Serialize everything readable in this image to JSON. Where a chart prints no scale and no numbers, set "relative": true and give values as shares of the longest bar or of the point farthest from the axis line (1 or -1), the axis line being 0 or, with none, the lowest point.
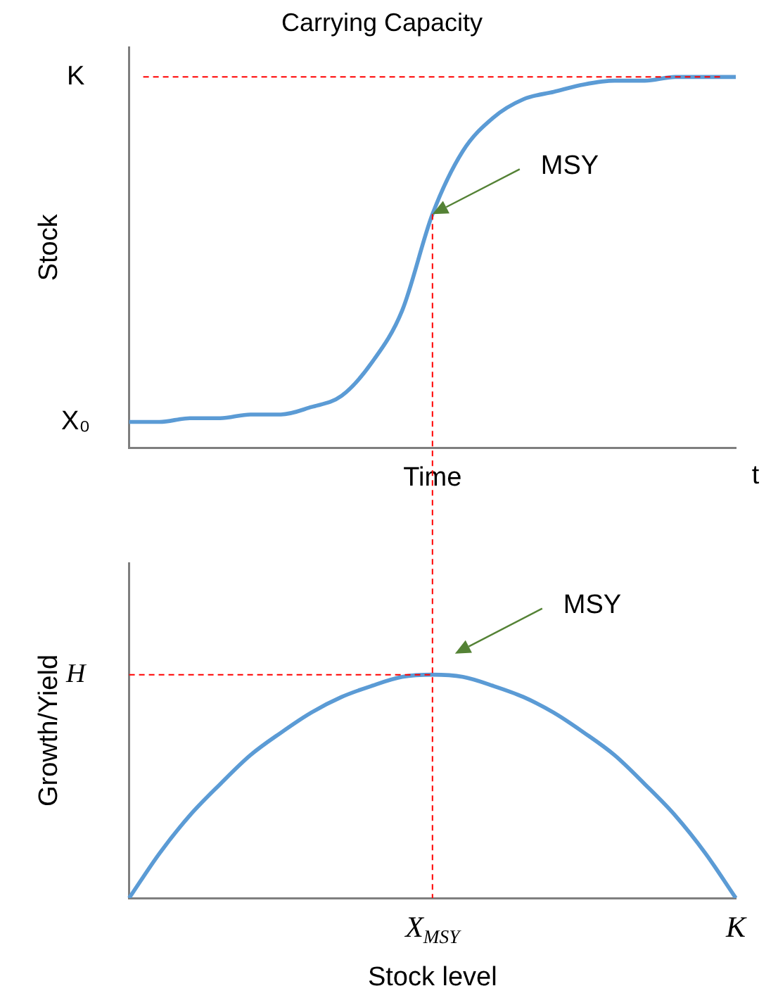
{
  "chart_data": [
    {
      "type": "line",
      "title": "Carrying Capacity",
      "xlabel": "Time",
      "ylabel": "Stock",
      "relative": true,
      "grid": false,
      "legend": false,
      "marker": "none",
      "categories": [
        null,
        null,
        null,
        null,
        null,
        null,
        null,
        null,
        null,
        null,
        null,
        null,
        null,
        null,
        null,
        null,
        null,
        null,
        null,
        null,
        null
      ],
      "series": [
        {
          "color": "#5b9bd5",
          "values": [
            0.07,
            0.07,
            0.08,
            0.08,
            0.09,
            0.09,
            0.11,
            0.14,
            0.23,
            0.37,
            0.63,
            0.8,
            0.89,
            0.94,
            0.96,
            0.98,
            0.99,
            0.99,
            1,
            1,
            1
          ]
        }
      ],
      "ref_lines": [
        {
          "axis": "y",
          "value": 1,
          "label": "K",
          "color": "#ff0000",
          "line_style": "dashed"
        }
      ],
      "annotations": [
        "X₀",
        "MSY",
        "t"
      ]
    },
    {
      "type": "line",
      "xlabel": "Stock level",
      "ylabel": "Growth/Yield",
      "relative": true,
      "grid": false,
      "legend": false,
      "marker": "none",
      "categories": [
        null,
        null,
        null,
        null,
        null,
        null,
        null,
        null,
        null,
        null,
        "X$_{MSY}$",
        null,
        null,
        null,
        null,
        null,
        null,
        null,
        null,
        null,
        "K"
      ],
      "series": [
        {
          "color": "#5b9bd5",
          "values": [
            0,
            0.2,
            0.37,
            0.51,
            0.64,
            0.74,
            0.83,
            0.9,
            0.95,
            0.99,
            1,
            0.99,
            0.95,
            0.9,
            0.83,
            0.74,
            0.64,
            0.51,
            0.37,
            0.2,
            0
          ]
        }
      ],
      "ref_lines": [
        {
          "axis": "y",
          "value": 1,
          "label": "H",
          "color": "#ff0000",
          "line_style": "dashed"
        }
      ],
      "annotations": [
        "MSY"
      ]
    }
  ]
}
